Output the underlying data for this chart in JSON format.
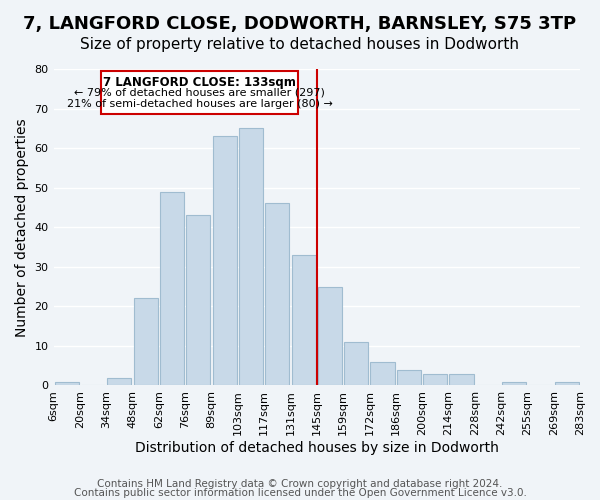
{
  "title": "7, LANGFORD CLOSE, DODWORTH, BARNSLEY, S75 3TP",
  "subtitle": "Size of property relative to detached houses in Dodworth",
  "xlabel": "Distribution of detached houses by size in Dodworth",
  "ylabel": "Number of detached properties",
  "bar_color": "#c8d9e8",
  "bar_edge_color": "#a0bcd0",
  "background_color": "#f0f4f8",
  "grid_color": "white",
  "tick_labels": [
    "6sqm",
    "20sqm",
    "34sqm",
    "48sqm",
    "62sqm",
    "76sqm",
    "89sqm",
    "103sqm",
    "117sqm",
    "131sqm",
    "145sqm",
    "159sqm",
    "172sqm",
    "186sqm",
    "200sqm",
    "214sqm",
    "228sqm",
    "242sqm",
    "255sqm",
    "269sqm",
    "283sqm"
  ],
  "values": [
    1,
    0,
    2,
    22,
    49,
    43,
    63,
    65,
    46,
    33,
    25,
    11,
    6,
    4,
    3,
    3,
    0,
    1,
    0,
    1
  ],
  "vline_x": 9.5,
  "vline_color": "#cc0000",
  "annotation_title": "7 LANGFORD CLOSE: 133sqm",
  "annotation_line1": "← 79% of detached houses are smaller (297)",
  "annotation_line2": "21% of semi-detached houses are larger (80) →",
  "annotation_box_color": "white",
  "annotation_box_edge": "#cc0000",
  "footer1": "Contains HM Land Registry data © Crown copyright and database right 2024.",
  "footer2": "Contains public sector information licensed under the Open Government Licence v3.0.",
  "ylim": [
    0,
    80
  ],
  "title_fontsize": 13,
  "subtitle_fontsize": 11,
  "axis_label_fontsize": 10,
  "tick_fontsize": 8,
  "footer_fontsize": 7.5
}
